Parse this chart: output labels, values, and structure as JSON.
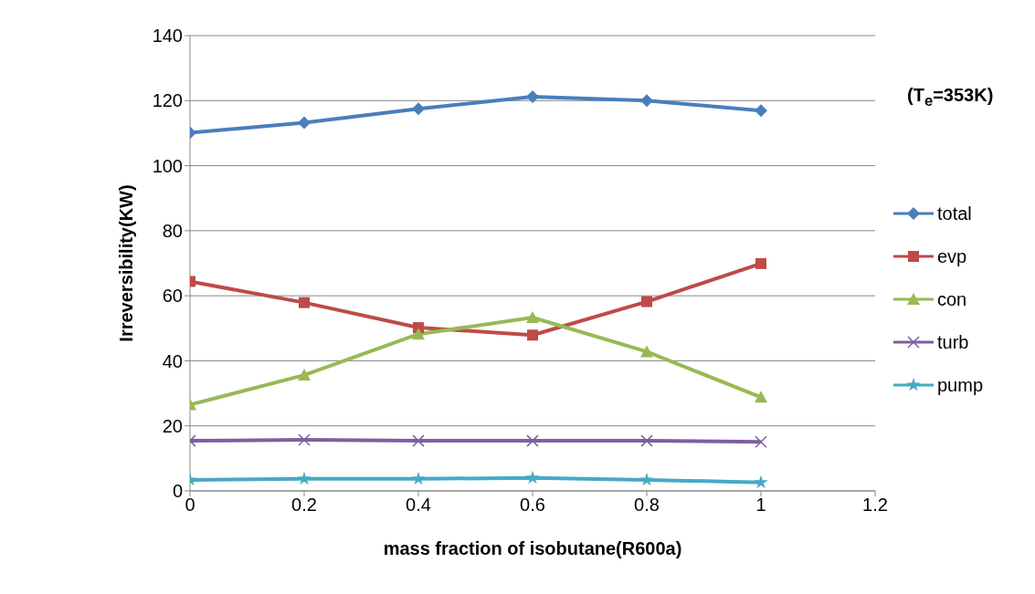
{
  "chart_data": {
    "type": "line",
    "xlabel": "mass fraction of isobutane(R600a)",
    "ylabel": "Irreversibility(KW)",
    "annotations": [
      "(T$_{e}$=353K)"
    ],
    "x": [
      0,
      0.2,
      0.4,
      0.6,
      0.8,
      1
    ],
    "series": [
      {
        "name": "total",
        "color": "#4a7ebb",
        "marker": "diamond",
        "values": [
          110.1,
          113.2,
          117.5,
          121.2,
          120,
          116.9
        ]
      },
      {
        "name": "evp",
        "color": "#be4b48",
        "marker": "square",
        "values": [
          64.4,
          57.9,
          50.2,
          47.9,
          58.2,
          69.9
        ]
      },
      {
        "name": "con",
        "color": "#98b954",
        "marker": "triangle",
        "values": [
          26.5,
          35.6,
          48.2,
          53.3,
          42.8,
          28.8
        ]
      },
      {
        "name": "turb",
        "color": "#7d60a0",
        "marker": "cross",
        "values": [
          15.4,
          15.7,
          15.4,
          15.4,
          15.4,
          15.1
        ]
      },
      {
        "name": "pump",
        "color": "#46aac5",
        "marker": "star",
        "values": [
          3.4,
          3.7,
          3.7,
          4.0,
          3.4,
          2.6
        ]
      }
    ],
    "xlim": [
      0,
      1.2
    ],
    "xticks": [
      0,
      0.2,
      0.4,
      0.6,
      0.8,
      1,
      1.2
    ],
    "ylim": [
      0,
      140
    ],
    "yticks": [
      0,
      20,
      40,
      60,
      80,
      100,
      120,
      140
    ],
    "grid": "y",
    "legend": "right",
    "line_style": "solid"
  }
}
